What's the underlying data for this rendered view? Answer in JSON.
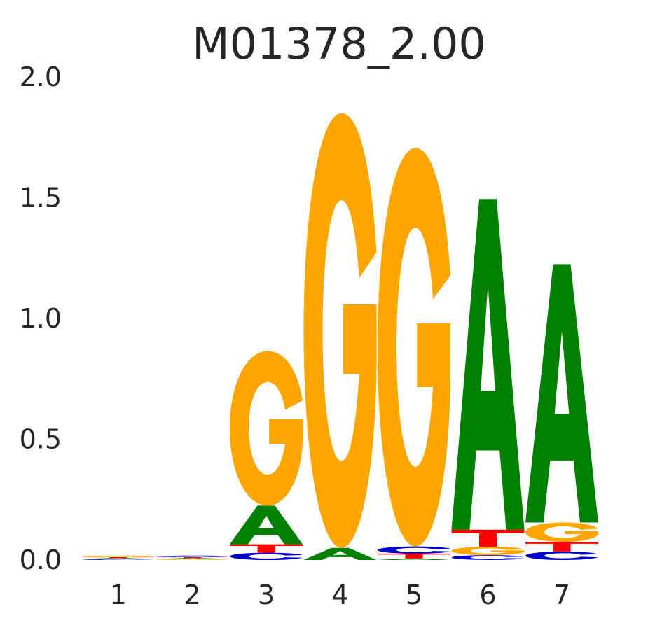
{
  "chart_data": {
    "type": "sequence-logo",
    "title": "M01378_2.00",
    "xlabel": "",
    "ylabel": "",
    "ylim": [
      0,
      2.0
    ],
    "yticks": [
      "0.0",
      "0.5",
      "1.0",
      "1.5",
      "2.0"
    ],
    "ytick_values": [
      0,
      0.5,
      1.0,
      1.5,
      2.0
    ],
    "positions": [
      "1",
      "2",
      "3",
      "4",
      "5",
      "6",
      "7"
    ],
    "letter_colors": {
      "A": "#008000",
      "C": "#0000cc",
      "G": "#ffa500",
      "T": "#ff0000"
    },
    "stacks": [
      {
        "position": "1",
        "letters": [
          {
            "base": "C",
            "height": 0.004
          },
          {
            "base": "A",
            "height": 0.004
          },
          {
            "base": "T",
            "height": 0.004
          },
          {
            "base": "G",
            "height": 0.006
          }
        ]
      },
      {
        "position": "2",
        "letters": [
          {
            "base": "G",
            "height": 0.004
          },
          {
            "base": "A",
            "height": 0.004
          },
          {
            "base": "T",
            "height": 0.004
          },
          {
            "base": "C",
            "height": 0.006
          }
        ]
      },
      {
        "position": "3",
        "letters": [
          {
            "base": "C",
            "height": 0.03
          },
          {
            "base": "T",
            "height": 0.035
          },
          {
            "base": "A",
            "height": 0.16
          },
          {
            "base": "G",
            "height": 0.64
          }
        ]
      },
      {
        "position": "4",
        "letters": [
          {
            "base": "A",
            "height": 0.05
          },
          {
            "base": "G",
            "height": 1.8
          }
        ]
      },
      {
        "position": "5",
        "letters": [
          {
            "base": "A",
            "height": 0.006
          },
          {
            "base": "T",
            "height": 0.02
          },
          {
            "base": "C",
            "height": 0.03
          },
          {
            "base": "G",
            "height": 1.65
          }
        ]
      },
      {
        "position": "6",
        "letters": [
          {
            "base": "C",
            "height": 0.02
          },
          {
            "base": "G",
            "height": 0.035
          },
          {
            "base": "T",
            "height": 0.07
          },
          {
            "base": "A",
            "height": 1.37
          }
        ]
      },
      {
        "position": "7",
        "letters": [
          {
            "base": "C",
            "height": 0.035
          },
          {
            "base": "T",
            "height": 0.04
          },
          {
            "base": "G",
            "height": 0.08
          },
          {
            "base": "A",
            "height": 1.07
          }
        ]
      }
    ]
  }
}
